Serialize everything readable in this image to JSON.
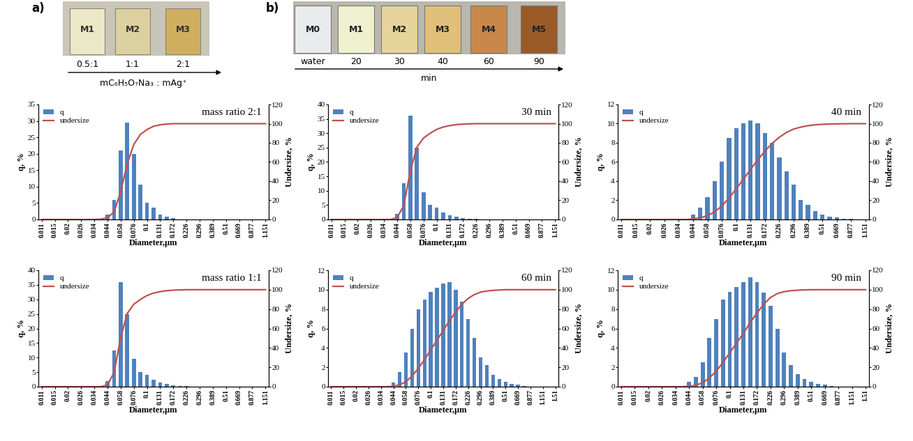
{
  "panels": {
    "a": {
      "label": "a)",
      "samples": [
        "M1",
        "M2",
        "M3"
      ],
      "ratios": [
        "0.5:1",
        "1:1",
        "2:1"
      ],
      "axis_label": "mC₆H₅O₇Na₃ : mAg⁺"
    },
    "b": {
      "label": "b)",
      "samples": [
        "M0",
        "M1",
        "M2",
        "M3",
        "M4",
        "M5"
      ],
      "times": [
        "water",
        "20",
        "30",
        "40",
        "60",
        "90"
      ],
      "axis_label": "min"
    }
  },
  "chart_data": [
    {
      "type": "bar",
      "title": "mass ratio 2:1",
      "x_label": "Diameter,μm",
      "y_label": "q, %",
      "y2_label": "Undersize, %",
      "categories": [
        "0.011",
        null,
        "0.015",
        null,
        "0.02",
        null,
        "0.026",
        null,
        "0.034",
        null,
        "0.044",
        null,
        "0.058",
        null,
        "0.076",
        null,
        "0.1",
        null,
        "0.131",
        null,
        "0.172",
        null,
        "0.226",
        null,
        "0.296",
        null,
        "0.389",
        null,
        "0.51",
        null,
        "0.669",
        null,
        "0.877",
        null,
        "1.151"
      ],
      "series": [
        {
          "name": "q",
          "color": "#4f81bd",
          "values": [
            0,
            0,
            0,
            0,
            0,
            0,
            0,
            0,
            0,
            0.3,
            1.5,
            6,
            21,
            29.5,
            20,
            10.5,
            5,
            3.5,
            1.5,
            0.8,
            0.4,
            0,
            0,
            0,
            0,
            0,
            0,
            0,
            0,
            0,
            0,
            0,
            0,
            0,
            0
          ]
        },
        {
          "name": "undersize",
          "type": "line",
          "axis": "y2",
          "color": "#c0504d",
          "values": [
            0,
            0,
            0,
            0,
            0,
            0,
            0,
            0,
            0,
            0.3,
            1.8,
            7.8,
            28.8,
            58.3,
            78.3,
            88.8,
            93.8,
            97.3,
            98.8,
            99.6,
            100,
            100,
            100,
            100,
            100,
            100,
            100,
            100,
            100,
            100,
            100,
            100,
            100,
            100,
            100
          ]
        }
      ],
      "ylim": [
        0,
        35
      ],
      "yticks": [
        0,
        5,
        10,
        15,
        20,
        25,
        30,
        35
      ],
      "y2lim": [
        0,
        120
      ],
      "y2ticks": [
        0,
        20,
        40,
        60,
        80,
        100,
        120
      ],
      "legend": "upper left"
    },
    {
      "type": "bar",
      "title": "mass ratio 1:1",
      "x_label": "Diameter,μm",
      "y_label": "q, %",
      "y2_label": "Undersize, %",
      "categories": [
        "0.011",
        null,
        "0.015",
        null,
        "0.02",
        null,
        "0.026",
        null,
        "0.034",
        null,
        "0.044",
        null,
        "0.058",
        null,
        "0.076",
        null,
        "0.1",
        null,
        "0.131",
        null,
        "0.172",
        null,
        "0.226",
        null,
        "0.296",
        null,
        "0.389",
        null,
        "0.51",
        null,
        "0.669",
        null,
        "0.877",
        null,
        "1.151"
      ],
      "series": [
        {
          "name": "q",
          "color": "#4f81bd",
          "values": [
            0,
            0,
            0,
            0,
            0,
            0,
            0,
            0,
            0,
            0,
            2,
            12.5,
            36,
            25,
            9.5,
            5,
            4,
            2.5,
            1.5,
            1,
            0.5,
            0.3,
            0.2,
            0,
            0,
            0,
            0,
            0,
            0,
            0,
            0,
            0,
            0,
            0,
            0
          ]
        },
        {
          "name": "undersize",
          "type": "line",
          "axis": "y2",
          "color": "#c0504d",
          "values": [
            0,
            0,
            0,
            0,
            0,
            0,
            0,
            0,
            0,
            0,
            2,
            14.5,
            50.5,
            75.5,
            85,
            90,
            94,
            96.5,
            98,
            99,
            99.5,
            99.8,
            100,
            100,
            100,
            100,
            100,
            100,
            100,
            100,
            100,
            100,
            100,
            100,
            100
          ]
        }
      ],
      "ylim": [
        0,
        40
      ],
      "yticks": [
        0,
        5,
        10,
        15,
        20,
        25,
        30,
        35,
        40
      ],
      "y2lim": [
        0,
        120
      ],
      "y2ticks": [
        0,
        20,
        40,
        60,
        80,
        100,
        120
      ],
      "legend": "upper left"
    },
    {
      "type": "bar",
      "title": "30 min",
      "x_label": "Diameter,μm",
      "y_label": "q, %",
      "y2_label": "Undersize, %",
      "categories": [
        "0.011",
        null,
        "0.015",
        null,
        "0.02",
        null,
        "0.026",
        null,
        "0.034",
        null,
        "0.044",
        null,
        "0.058",
        null,
        "0.076",
        null,
        "0.1",
        null,
        "0.131",
        null,
        "0.172",
        null,
        "0.226",
        null,
        "0.296",
        null,
        "0.389",
        null,
        "0.51",
        null,
        "0.669",
        null,
        "0.877",
        null,
        "1.151"
      ],
      "series": [
        {
          "name": "q",
          "color": "#4f81bd",
          "values": [
            0,
            0,
            0,
            0,
            0,
            0,
            0,
            0,
            0,
            0,
            2,
            12.5,
            36,
            25,
            9.5,
            5,
            4,
            2.5,
            1.5,
            1,
            0.5,
            0.3,
            0.2,
            0,
            0,
            0,
            0,
            0,
            0,
            0,
            0,
            0,
            0,
            0,
            0
          ]
        },
        {
          "name": "undersize",
          "type": "line",
          "axis": "y2",
          "color": "#c0504d",
          "values": [
            0,
            0,
            0,
            0,
            0,
            0,
            0,
            0,
            0,
            0,
            2,
            14.5,
            50.5,
            75.5,
            85,
            90,
            94,
            96.5,
            98,
            99,
            99.5,
            99.8,
            100,
            100,
            100,
            100,
            100,
            100,
            100,
            100,
            100,
            100,
            100,
            100,
            100
          ]
        }
      ],
      "ylim": [
        0,
        40
      ],
      "yticks": [
        0,
        5,
        10,
        15,
        20,
        25,
        30,
        35,
        40
      ],
      "y2lim": [
        0,
        120
      ],
      "y2ticks": [
        0,
        20,
        40,
        60,
        80,
        100,
        120
      ],
      "legend": "upper left"
    },
    {
      "type": "bar",
      "title": "40 min",
      "x_label": "Diameter,μm",
      "y_label": "q, %",
      "y2_label": "Undersize, %",
      "categories": [
        "0.011",
        null,
        "0.015",
        null,
        "0.02",
        null,
        "0.026",
        null,
        "0.034",
        null,
        "0.044",
        null,
        "0.058",
        null,
        "0.076",
        null,
        "0.1",
        null,
        "0.131",
        null,
        "0.172",
        null,
        "0.226",
        null,
        "0.296",
        null,
        "0.389",
        null,
        "0.51",
        null,
        "0.669",
        null,
        "0.877",
        null,
        "1.151"
      ],
      "series": [
        {
          "name": "q",
          "color": "#4f81bd",
          "values": [
            0,
            0,
            0,
            0,
            0,
            0,
            0,
            0,
            0,
            0,
            0.5,
            1.2,
            2.3,
            4,
            6,
            8.5,
            9.5,
            10,
            10.3,
            10,
            9,
            8,
            6.5,
            5,
            3.6,
            2,
            1.5,
            0.9,
            0.5,
            0.3,
            0.2,
            0.1,
            0.1,
            0,
            0
          ]
        },
        {
          "name": "undersize",
          "type": "line",
          "axis": "y2",
          "color": "#c0504d",
          "values": [
            0,
            0,
            0,
            0,
            0,
            0,
            0,
            0,
            0,
            0,
            0.5,
            1.7,
            4,
            8,
            14,
            22.5,
            32,
            42,
            52.3,
            62.3,
            71.3,
            79.3,
            85.8,
            90.8,
            94.4,
            96.4,
            97.9,
            98.8,
            99.3,
            99.6,
            99.8,
            99.9,
            100,
            100,
            100
          ]
        }
      ],
      "ylim": [
        0,
        12
      ],
      "yticks": [
        0,
        2,
        4,
        6,
        8,
        10,
        12
      ],
      "y2lim": [
        0,
        120
      ],
      "y2ticks": [
        0,
        20,
        40,
        60,
        80,
        100,
        120
      ],
      "legend": "upper left"
    },
    {
      "type": "bar",
      "title": "60 min",
      "x_label": "Diameter,μm",
      "y_label": "q, %",
      "y2_label": "Undersize, %",
      "categories": [
        "0.011",
        null,
        "0.015",
        null,
        "0.02",
        null,
        "0.026",
        null,
        "0.034",
        null,
        "0.044",
        null,
        "0.058",
        null,
        "0.076",
        null,
        "0.1",
        null,
        "0.131",
        null,
        "0.172",
        null,
        "0.226",
        null,
        "0.296",
        null,
        "0.389",
        null,
        "0.51",
        null,
        "0.669",
        null,
        "0.877",
        null,
        "1.151",
        null,
        "1.51"
      ],
      "series": [
        {
          "name": "q",
          "color": "#4f81bd",
          "values": [
            0,
            0,
            0,
            0,
            0,
            0,
            0,
            0,
            0,
            0,
            0.4,
            1.5,
            3.5,
            6,
            8,
            9,
            9.8,
            10.2,
            10.6,
            10.8,
            10,
            8.8,
            7,
            5,
            3,
            2.2,
            1.2,
            0.8,
            0.5,
            0.3,
            0.2,
            0.1,
            0,
            0,
            0,
            0,
            0
          ]
        },
        {
          "name": "undersize",
          "type": "line",
          "axis": "y2",
          "color": "#c0504d",
          "values": [
            0,
            0,
            0,
            0,
            0,
            0,
            0,
            0,
            0,
            0,
            0.4,
            2,
            5,
            11,
            19,
            28,
            38,
            48,
            58,
            68,
            77,
            85,
            91,
            95,
            97.5,
            98.7,
            99.3,
            99.7,
            100,
            100,
            100,
            100,
            100,
            100,
            100,
            100,
            100
          ]
        }
      ],
      "ylim": [
        0,
        12
      ],
      "yticks": [
        0,
        2,
        4,
        6,
        8,
        10,
        12
      ],
      "y2lim": [
        0,
        120
      ],
      "y2ticks": [
        0,
        20,
        40,
        60,
        80,
        100,
        120
      ],
      "legend": "upper left"
    },
    {
      "type": "bar",
      "title": "90 min",
      "x_label": "Diameter,μm",
      "y_label": "q, %",
      "y2_label": "Undersize, %",
      "categories": [
        "0.011",
        null,
        "0.015",
        null,
        "0.02",
        null,
        "0.026",
        null,
        "0.034",
        null,
        "0.044",
        null,
        "0.058",
        null,
        "0.076",
        null,
        "0.1",
        null,
        "0.131",
        null,
        "0.172",
        null,
        "0.226",
        null,
        "0.296",
        null,
        "0.389",
        null,
        "0.51",
        null,
        "0.669",
        null,
        "0.877",
        null,
        "1.151",
        null,
        "1.51"
      ],
      "series": [
        {
          "name": "q",
          "color": "#4f81bd",
          "values": [
            0,
            0,
            0,
            0,
            0,
            0,
            0,
            0,
            0,
            0,
            0.5,
            1,
            2.5,
            5,
            7,
            9,
            9.8,
            10.3,
            10.8,
            11.3,
            10.8,
            9.7,
            8.3,
            6,
            3.5,
            2.2,
            1.3,
            0.8,
            0.5,
            0.3,
            0.2,
            0.1,
            0,
            0,
            0,
            0,
            0
          ]
        },
        {
          "name": "undersize",
          "type": "line",
          "axis": "y2",
          "color": "#c0504d",
          "values": [
            0,
            0,
            0,
            0,
            0,
            0,
            0,
            0,
            0,
            0,
            0.5,
            1.5,
            4,
            9,
            16,
            25,
            35,
            45,
            55,
            66,
            76,
            85,
            92,
            96,
            98,
            99,
            99.5,
            99.8,
            100,
            100,
            100,
            100,
            100,
            100,
            100,
            100,
            100
          ]
        }
      ],
      "ylim": [
        0,
        12
      ],
      "yticks": [
        0,
        2,
        4,
        6,
        8,
        10,
        12
      ],
      "y2lim": [
        0,
        120
      ],
      "y2ticks": [
        0,
        20,
        40,
        60,
        80,
        100,
        120
      ],
      "legend": "upper left"
    }
  ]
}
